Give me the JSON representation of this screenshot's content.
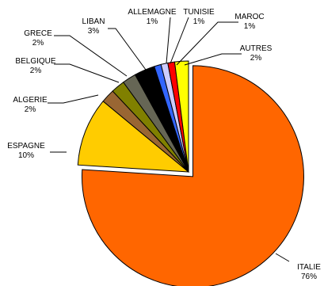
{
  "chart_data": {
    "type": "pie",
    "title": "",
    "legend": "none",
    "slices": [
      {
        "label": "ITALIE",
        "value": 76,
        "value_label": "76%",
        "color": "#FF6600"
      },
      {
        "label": "ESPAGNE",
        "value": 10,
        "value_label": "10%",
        "color": "#FFCC00"
      },
      {
        "label": "ALGERIE",
        "value": 2,
        "value_label": "2%",
        "color": "#996633"
      },
      {
        "label": "BELGIQUE",
        "value": 2,
        "value_label": "2%",
        "color": "#808000"
      },
      {
        "label": "GRECE",
        "value": 2,
        "value_label": "2%",
        "color": "#666655"
      },
      {
        "label": "LIBAN",
        "value": 3,
        "value_label": "3%",
        "color": "#000000"
      },
      {
        "label": "ALLEMAGNE",
        "value": 1,
        "value_label": "1%",
        "color": "#3366FF"
      },
      {
        "label": "TUNISIE",
        "value": 1,
        "value_label": "1%",
        "color": "#CCCCFF"
      },
      {
        "label": "MAROC",
        "value": 1,
        "value_label": "1%",
        "color": "#FF0000"
      },
      {
        "label": "AUTRES",
        "value": 2,
        "value_label": "2%",
        "color": "#FFFF00"
      }
    ]
  }
}
